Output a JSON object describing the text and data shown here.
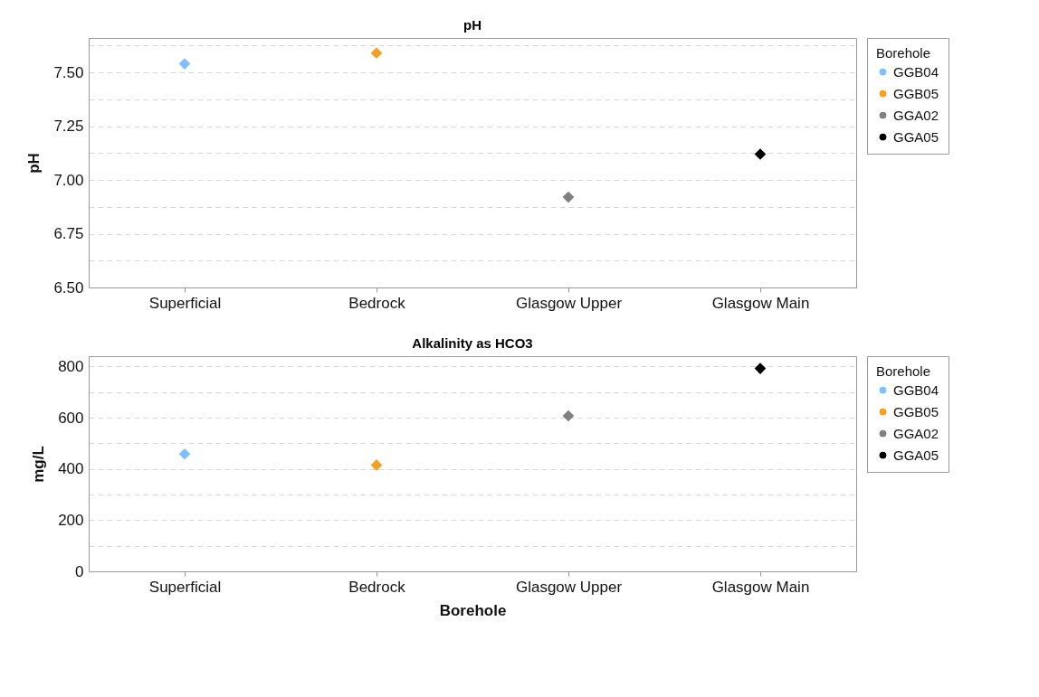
{
  "chart_data": [
    {
      "type": "scatter",
      "title": "pH",
      "ylabel": "pH",
      "legend_title": "Borehole",
      "categories": [
        "Superficial",
        "Bedrock",
        "Glasgow Upper",
        "Glasgow Main"
      ],
      "series": [
        {
          "name": "GGB04",
          "color": "#7fbfff",
          "values": [
            7.54,
            null,
            null,
            null
          ]
        },
        {
          "name": "GGB05",
          "color": "#f5a023",
          "values": [
            null,
            7.59,
            null,
            null
          ]
        },
        {
          "name": "GGA02",
          "color": "#808080",
          "values": [
            null,
            null,
            6.92,
            null
          ]
        },
        {
          "name": "GGA05",
          "color": "#000000",
          "values": [
            null,
            null,
            null,
            7.12
          ]
        }
      ],
      "ylim": [
        6.5,
        7.66
      ],
      "yticks": [
        {
          "value": 6.5,
          "label": "6.50"
        },
        {
          "value": 6.625,
          "label": null
        },
        {
          "value": 6.75,
          "label": "6.75"
        },
        {
          "value": 6.875,
          "label": null
        },
        {
          "value": 7,
          "label": "7.00"
        },
        {
          "value": 7.125,
          "label": null
        },
        {
          "value": 7.25,
          "label": "7.25"
        },
        {
          "value": 7.375,
          "label": null
        },
        {
          "value": 7.5,
          "label": "7.50"
        },
        {
          "value": 7.625,
          "label": null
        }
      ],
      "grid": true,
      "legend": "right",
      "marker": "diamond"
    },
    {
      "type": "scatter",
      "title": "Alkalinity as HCO3",
      "xlabel": "Borehole",
      "ylabel": "mg/L",
      "legend_title": "Borehole",
      "categories": [
        "Superficial",
        "Bedrock",
        "Glasgow Upper",
        "Glasgow Main"
      ],
      "series": [
        {
          "name": "GGB04",
          "color": "#7fbfff",
          "values": [
            458,
            null,
            null,
            null
          ]
        },
        {
          "name": "GGB05",
          "color": "#f5a023",
          "values": [
            null,
            415,
            null,
            null
          ]
        },
        {
          "name": "GGA02",
          "color": "#808080",
          "values": [
            null,
            null,
            607,
            null
          ]
        },
        {
          "name": "GGA05",
          "color": "#000000",
          "values": [
            null,
            null,
            null,
            792
          ]
        }
      ],
      "ylim": [
        0,
        840
      ],
      "yticks": [
        0,
        {
          "value": 100,
          "label": null
        },
        200,
        {
          "value": 300,
          "label": null
        },
        400,
        {
          "value": 500,
          "label": null
        },
        600,
        {
          "value": 700,
          "label": null
        },
        800
      ],
      "grid": true,
      "legend": "right",
      "marker": "diamond"
    }
  ]
}
